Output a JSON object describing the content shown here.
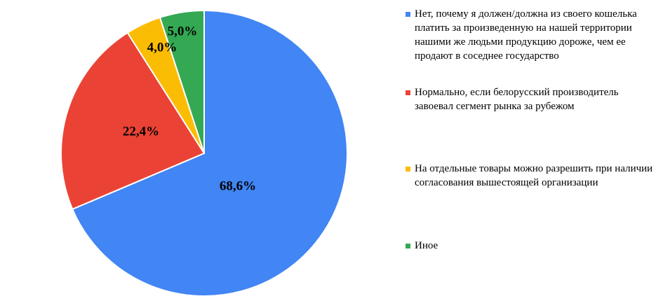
{
  "chart_data": {
    "type": "pie",
    "start_angle_deg": 0,
    "direction": "clockwise",
    "legend_position": "right",
    "slices": [
      {
        "label": "Нет, почему я должен/должна из своего кошелька платить за произведенную на нашей территории нашими же людьми продукцию дороже, чем ее продают в соседнее государство",
        "value": 68.6,
        "value_label": "68,6%",
        "color": "#4285F4"
      },
      {
        "label": "Нормально, если белорусский производитель завоевал сегмент рынка за рубежом",
        "value": 22.4,
        "value_label": "22,4%",
        "color": "#EA4335"
      },
      {
        "label": "На отдельные товары можно разрешить при наличии согласования вышестоящей организации",
        "value": 4.0,
        "value_label": "4,0%",
        "color": "#FBBC04"
      },
      {
        "label": "Иное",
        "value": 5.0,
        "value_label": "5,0%",
        "color": "#34A853"
      }
    ]
  }
}
